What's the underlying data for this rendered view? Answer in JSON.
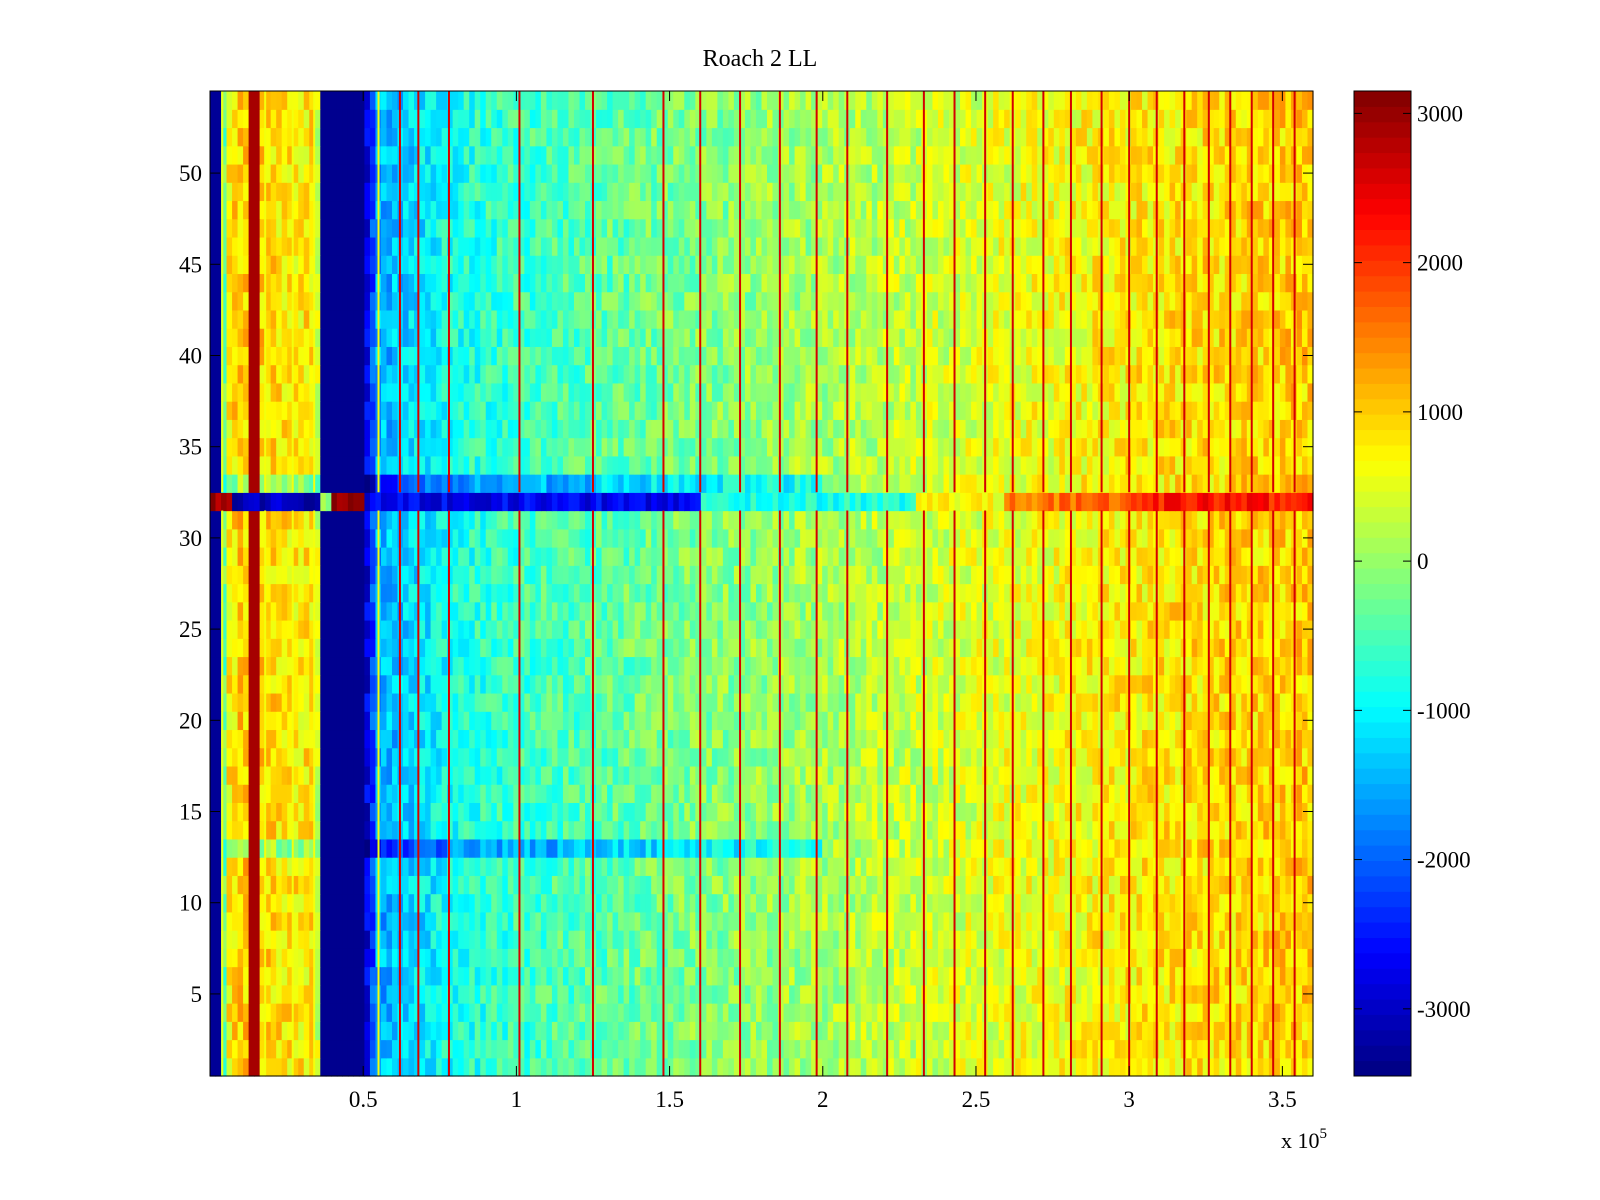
{
  "chart_data": {
    "type": "heatmap",
    "title": "Roach 2 LL",
    "xlabel": "",
    "ylabel": "",
    "x_exponent_label": "x 10",
    "x_exponent": "5",
    "xlim": [
      0,
      360000
    ],
    "ylim": [
      0.5,
      54.5
    ],
    "x_ticks": [
      50000,
      100000,
      150000,
      200000,
      250000,
      300000,
      350000
    ],
    "x_tick_labels": [
      "0.5",
      "1",
      "1.5",
      "2",
      "2.5",
      "3",
      "3.5"
    ],
    "y_ticks": [
      5,
      10,
      15,
      20,
      25,
      30,
      35,
      40,
      45,
      50
    ],
    "y_tick_labels": [
      "5",
      "10",
      "15",
      "20",
      "25",
      "30",
      "35",
      "40",
      "45",
      "50"
    ],
    "rows": 54,
    "colorbar": {
      "colormap": "jet",
      "clim": [
        -3450,
        3150
      ],
      "ticks": [
        -3000,
        -2000,
        -1000,
        0,
        1000,
        2000,
        3000
      ],
      "tick_labels": [
        "-3000",
        "-2000",
        "-1000",
        "0",
        "1000",
        "2000",
        "3000"
      ]
    },
    "trend_profile_x": [
      0,
      3000,
      5000,
      10000,
      15000,
      20000,
      25000,
      35000,
      36000,
      50000,
      55000,
      70000,
      80000,
      100000,
      150000,
      200000,
      250000,
      300000,
      360000
    ],
    "trend_profile_value": [
      -3300,
      -3300,
      700,
      1000,
      1000,
      900,
      800,
      800,
      -3300,
      -3300,
      -1500,
      -1100,
      -800,
      -600,
      -200,
      100,
      450,
      750,
      1000
    ],
    "stripes": [
      {
        "x_start": 0,
        "x_end": 3000,
        "value": -3300
      },
      {
        "x_start": 12500,
        "x_end": 16000,
        "value": 2900
      },
      {
        "x_start": 36000,
        "x_end": 50000,
        "value": -3350
      }
    ],
    "spike_lines_x": [
      4000,
      18000,
      27000,
      34000,
      55000,
      62000,
      68000,
      78000,
      101000,
      125000,
      148000,
      160000,
      173000,
      186000,
      198000,
      208000,
      221000,
      233000,
      243000,
      253000,
      262000,
      272000,
      281000,
      291000,
      300000,
      309000,
      318000,
      326000,
      333000,
      340000,
      347000,
      354000
    ],
    "anomaly_row": {
      "row": 32,
      "description_values": [
        {
          "x_start": 0,
          "x_end": 8000,
          "value": 3000
        },
        {
          "x_start": 8000,
          "x_end": 26000,
          "value": -3000
        },
        {
          "x_start": 26000,
          "x_end": 36000,
          "value": -3100
        },
        {
          "x_start": 39000,
          "x_end": 50000,
          "value": 3000
        },
        {
          "x_start": 50000,
          "x_end": 160000,
          "value": -2700
        },
        {
          "x_start": 160000,
          "x_end": 230000,
          "value": -800
        },
        {
          "x_start": 230000,
          "x_end": 260000,
          "value": 700
        },
        {
          "x_start": 260000,
          "x_end": 300000,
          "value": 1600
        },
        {
          "x_start": 300000,
          "x_end": 360000,
          "value": 2200
        }
      ]
    },
    "secondary_anomaly_rows": [
      13,
      33
    ]
  }
}
